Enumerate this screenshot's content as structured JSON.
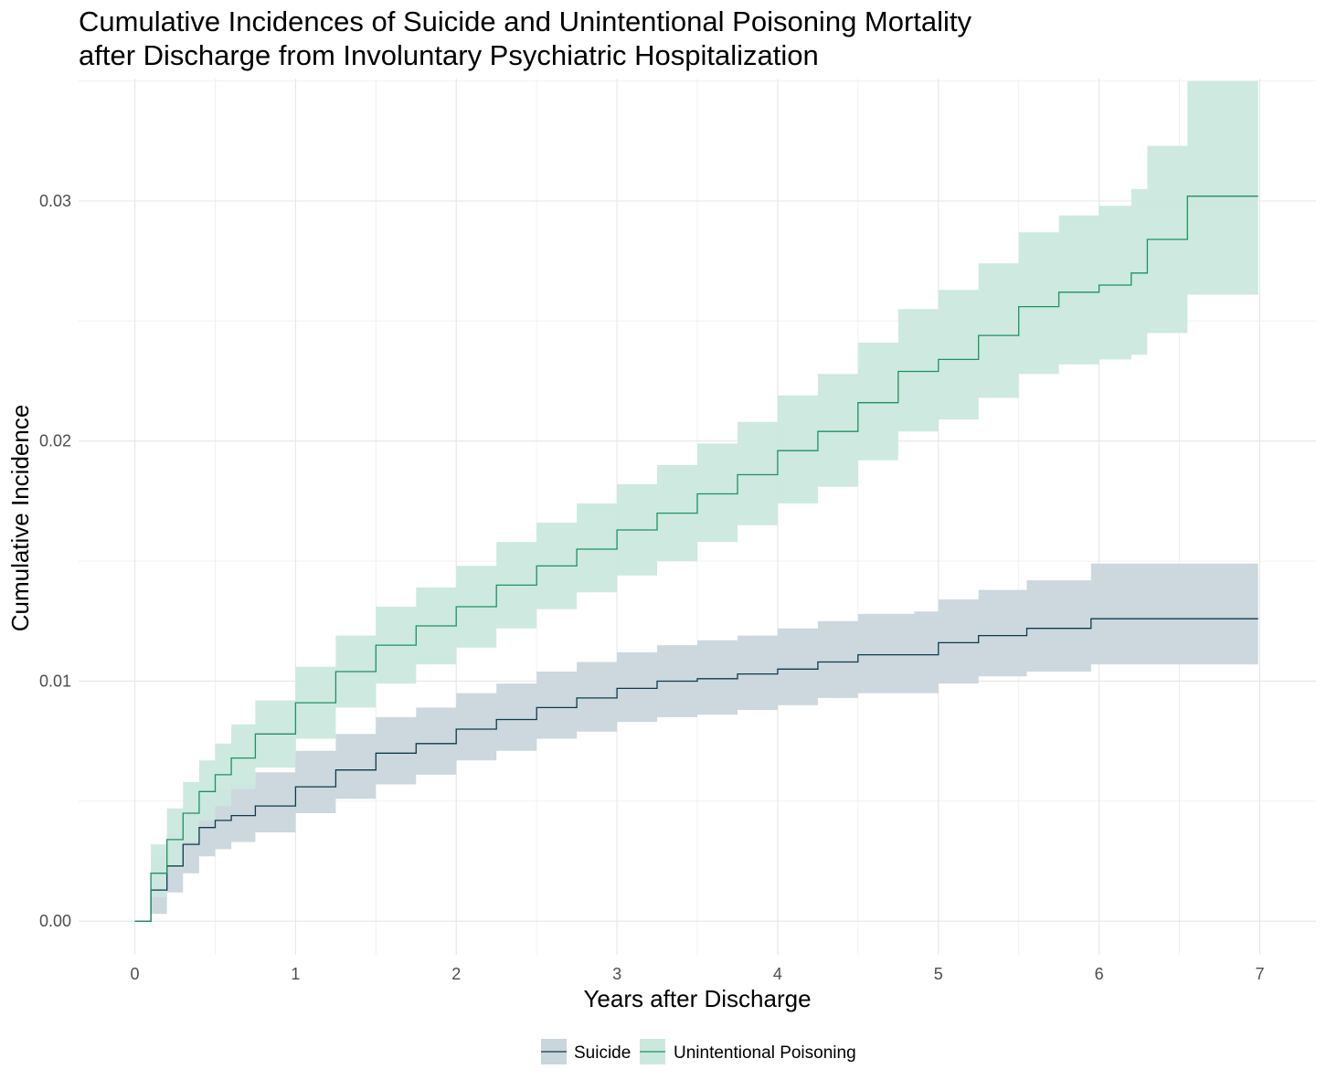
{
  "chart_data": {
    "type": "line",
    "title_lines": [
      "Cumulative Incidences of Suicide and Unintentional Poisoning Mortality",
      "after Discharge from Involuntary Psychiatric Hospitalization"
    ],
    "xlabel": "Years after Discharge",
    "ylabel": "Cumulative Incidence",
    "xlim": [
      -0.35,
      7.35
    ],
    "ylim": [
      -0.0014,
      0.0351
    ],
    "x_ticks": [
      0,
      1,
      2,
      3,
      4,
      5,
      6,
      7
    ],
    "x_tick_labels": [
      "0",
      "1",
      "2",
      "3",
      "4",
      "5",
      "6",
      "7"
    ],
    "y_ticks": [
      0,
      0.01,
      0.02,
      0.03
    ],
    "y_tick_labels": [
      "0.00",
      "0.01",
      "0.02",
      "0.03"
    ],
    "grid": true,
    "legend_position": "bottom",
    "step": true,
    "series": [
      {
        "name": "Suicide",
        "line_color": "#0d3a4f",
        "fill_color": "#c9d6dc",
        "x": [
          0,
          0.1,
          0.2,
          0.3,
          0.4,
          0.5,
          0.6,
          0.75,
          1.0,
          1.25,
          1.5,
          1.75,
          2.0,
          2.25,
          2.5,
          2.75,
          3.0,
          3.25,
          3.5,
          3.75,
          4.0,
          4.25,
          4.5,
          4.85,
          5.0,
          5.25,
          5.55,
          5.95,
          6.25,
          6.6,
          6.99
        ],
        "y": [
          0,
          0.0013,
          0.0023,
          0.0032,
          0.0039,
          0.0042,
          0.0044,
          0.0048,
          0.0056,
          0.0063,
          0.007,
          0.0074,
          0.008,
          0.0084,
          0.0089,
          0.0093,
          0.0097,
          0.01,
          0.0101,
          0.0103,
          0.0105,
          0.0108,
          0.0111,
          0.0111,
          0.0116,
          0.0119,
          0.0122,
          0.0126,
          0.0126,
          0.0126,
          0.0126
        ],
        "lower": [
          0,
          0.0003,
          0.0012,
          0.002,
          0.0027,
          0.003,
          0.0033,
          0.0037,
          0.0045,
          0.0051,
          0.0057,
          0.0061,
          0.0067,
          0.0071,
          0.0076,
          0.0079,
          0.0083,
          0.0085,
          0.0086,
          0.0088,
          0.009,
          0.0093,
          0.0095,
          0.0095,
          0.0099,
          0.0102,
          0.0104,
          0.0107,
          0.0107,
          0.0107,
          0.0107
        ],
        "upper": [
          0,
          0.0027,
          0.0036,
          0.0045,
          0.0052,
          0.0055,
          0.0057,
          0.0062,
          0.0071,
          0.0078,
          0.0085,
          0.0089,
          0.0095,
          0.0099,
          0.0104,
          0.0108,
          0.0112,
          0.0115,
          0.0117,
          0.0119,
          0.0122,
          0.0125,
          0.0128,
          0.0129,
          0.0134,
          0.0138,
          0.0142,
          0.0149,
          0.0149,
          0.0149,
          0.0149
        ]
      },
      {
        "name": "Unintentional Poisoning",
        "line_color": "#1a9460",
        "fill_color": "#cbe8de",
        "x": [
          0,
          0.1,
          0.2,
          0.3,
          0.4,
          0.5,
          0.6,
          0.75,
          1.0,
          1.25,
          1.5,
          1.75,
          2.0,
          2.25,
          2.5,
          2.75,
          3.0,
          3.25,
          3.5,
          3.75,
          4.0,
          4.25,
          4.5,
          4.75,
          5.0,
          5.25,
          5.5,
          5.75,
          6.0,
          6.2,
          6.3,
          6.55,
          6.99
        ],
        "y": [
          0,
          0.002,
          0.0034,
          0.0045,
          0.0054,
          0.0061,
          0.0068,
          0.0078,
          0.0091,
          0.0104,
          0.0115,
          0.0123,
          0.0131,
          0.014,
          0.0148,
          0.0155,
          0.0163,
          0.017,
          0.0178,
          0.0186,
          0.0196,
          0.0204,
          0.0216,
          0.0229,
          0.0234,
          0.0244,
          0.0256,
          0.0262,
          0.0265,
          0.027,
          0.0284,
          0.0302,
          0.0302
        ],
        "lower": [
          0,
          0.001,
          0.0022,
          0.0033,
          0.0042,
          0.0048,
          0.0055,
          0.0064,
          0.0076,
          0.0089,
          0.0099,
          0.0107,
          0.0114,
          0.0122,
          0.013,
          0.0137,
          0.0144,
          0.015,
          0.0158,
          0.0165,
          0.0174,
          0.0181,
          0.0192,
          0.0204,
          0.0209,
          0.0218,
          0.0228,
          0.0232,
          0.0234,
          0.0236,
          0.0245,
          0.0261,
          0.0261
        ],
        "upper": [
          0,
          0.0032,
          0.0047,
          0.0058,
          0.0067,
          0.0074,
          0.0082,
          0.0092,
          0.0106,
          0.0119,
          0.0131,
          0.0139,
          0.0148,
          0.0158,
          0.0166,
          0.0174,
          0.0182,
          0.019,
          0.0199,
          0.0208,
          0.0219,
          0.0228,
          0.0241,
          0.0255,
          0.0263,
          0.0274,
          0.0287,
          0.0294,
          0.0298,
          0.0305,
          0.0323,
          0.035,
          0.035
        ]
      }
    ]
  }
}
